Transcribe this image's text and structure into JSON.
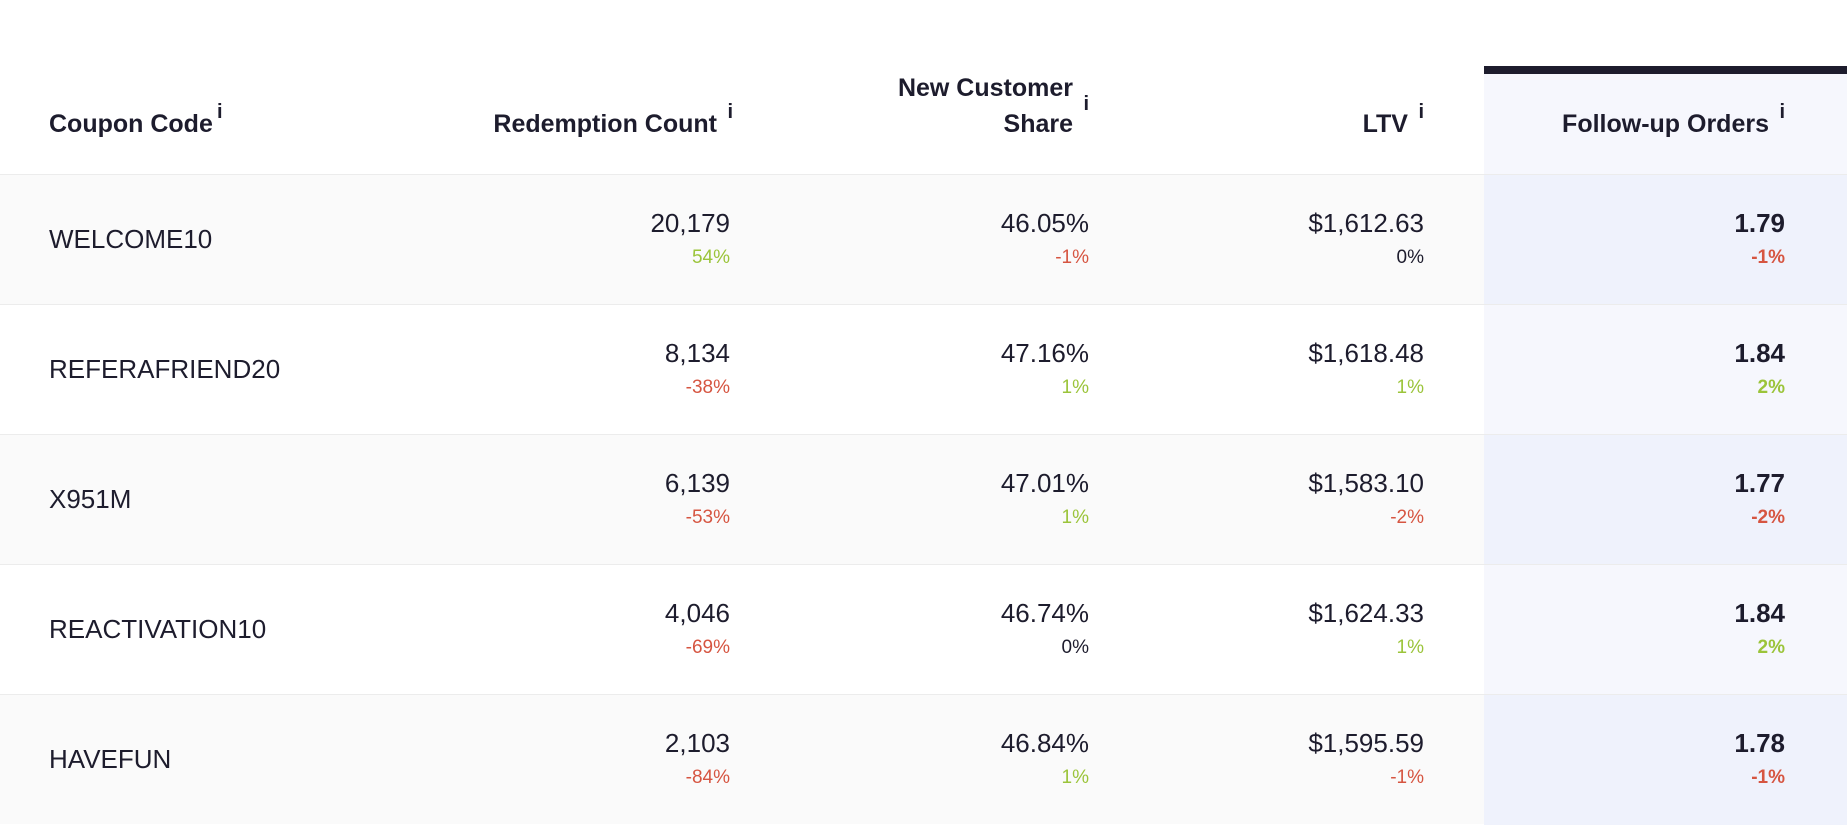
{
  "columns": [
    {
      "label": "Coupon Code",
      "info": "i"
    },
    {
      "label": "Redemption Count",
      "info": "i"
    },
    {
      "label_line1": "New Customer",
      "label_line2": "Share",
      "info": "i"
    },
    {
      "label": "LTV",
      "info": "i"
    },
    {
      "label": "Follow-up Orders",
      "info": "i"
    }
  ],
  "rows": [
    {
      "code": "WELCOME10",
      "redemption": {
        "value": "20,179",
        "change": "54%",
        "trend": "pos"
      },
      "share": {
        "value": "46.05%",
        "change": "-1%",
        "trend": "neg"
      },
      "ltv": {
        "value": "$1,612.63",
        "change": "0%",
        "trend": "neu"
      },
      "followup": {
        "value": "1.79",
        "change": "-1%",
        "trend": "neg"
      }
    },
    {
      "code": "REFERAFRIEND20",
      "redemption": {
        "value": "8,134",
        "change": "-38%",
        "trend": "neg"
      },
      "share": {
        "value": "47.16%",
        "change": "1%",
        "trend": "pos"
      },
      "ltv": {
        "value": "$1,618.48",
        "change": "1%",
        "trend": "pos"
      },
      "followup": {
        "value": "1.84",
        "change": "2%",
        "trend": "pos"
      }
    },
    {
      "code": "X951M",
      "redemption": {
        "value": "6,139",
        "change": "-53%",
        "trend": "neg"
      },
      "share": {
        "value": "47.01%",
        "change": "1%",
        "trend": "pos"
      },
      "ltv": {
        "value": "$1,583.10",
        "change": "-2%",
        "trend": "neg"
      },
      "followup": {
        "value": "1.77",
        "change": "-2%",
        "trend": "neg"
      }
    },
    {
      "code": "REACTIVATION10",
      "redemption": {
        "value": "4,046",
        "change": "-69%",
        "trend": "neg"
      },
      "share": {
        "value": "46.74%",
        "change": "0%",
        "trend": "neu"
      },
      "ltv": {
        "value": "$1,624.33",
        "change": "1%",
        "trend": "pos"
      },
      "followup": {
        "value": "1.84",
        "change": "2%",
        "trend": "pos"
      }
    },
    {
      "code": "HAVEFUN",
      "redemption": {
        "value": "2,103",
        "change": "-84%",
        "trend": "neg"
      },
      "share": {
        "value": "46.84%",
        "change": "1%",
        "trend": "pos"
      },
      "ltv": {
        "value": "$1,595.59",
        "change": "-1%",
        "trend": "neg"
      },
      "followup": {
        "value": "1.78",
        "change": "-1%",
        "trend": "neg"
      }
    }
  ],
  "colors": {
    "positive": "#9bc43a",
    "negative": "#d65541",
    "neutral": "#1d1c2d",
    "highlight_column": "#eff2fc",
    "header_accent": "#1d1c2d"
  }
}
